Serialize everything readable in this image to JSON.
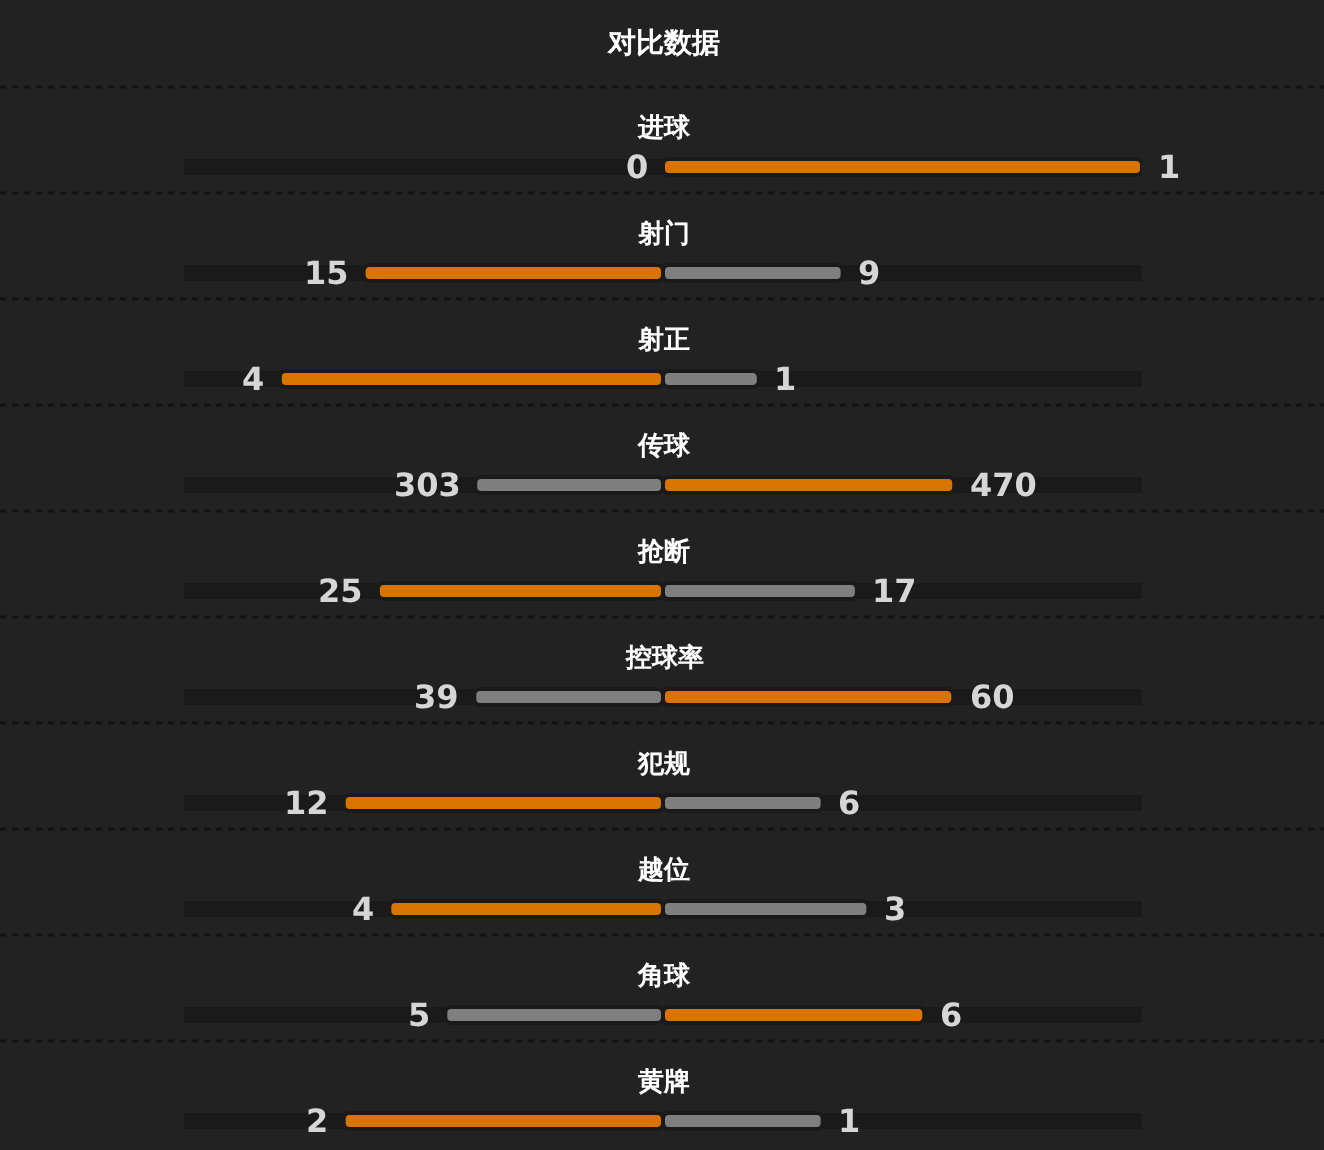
{
  "chart_data": [
    {
      "type": "bar",
      "orientation": "horizontal",
      "stacked": true,
      "title": "对比数据",
      "categories": [
        "进球"
      ],
      "series": [
        {
          "color": "#7f7f7f",
          "values": [
            0
          ]
        },
        {
          "color": "#d97400",
          "values": [
            1
          ]
        }
      ],
      "data_labels": true,
      "tick_labels": "y"
    },
    {
      "type": "bar",
      "orientation": "horizontal",
      "stacked": true,
      "categories": [
        "射门"
      ],
      "series": [
        {
          "color": "#d97400",
          "values": [
            15
          ]
        },
        {
          "color": "#7f7f7f",
          "values": [
            9
          ]
        }
      ],
      "data_labels": true,
      "tick_labels": "y"
    },
    {
      "type": "bar",
      "orientation": "horizontal",
      "stacked": true,
      "categories": [
        "射正"
      ],
      "series": [
        {
          "color": "#d97400",
          "values": [
            4
          ]
        },
        {
          "color": "#7f7f7f",
          "values": [
            1
          ]
        }
      ],
      "data_labels": true,
      "tick_labels": "y"
    },
    {
      "type": "bar",
      "orientation": "horizontal",
      "stacked": true,
      "categories": [
        "传球"
      ],
      "series": [
        {
          "color": "#7f7f7f",
          "values": [
            303
          ]
        },
        {
          "color": "#d97400",
          "values": [
            470
          ]
        }
      ],
      "data_labels": true,
      "tick_labels": "y"
    },
    {
      "type": "bar",
      "orientation": "horizontal",
      "stacked": true,
      "categories": [
        "抢断"
      ],
      "series": [
        {
          "color": "#d97400",
          "values": [
            25
          ]
        },
        {
          "color": "#7f7f7f",
          "values": [
            17
          ]
        }
      ],
      "data_labels": true,
      "tick_labels": "y"
    },
    {
      "type": "bar",
      "orientation": "horizontal",
      "stacked": true,
      "categories": [
        "控球率"
      ],
      "series": [
        {
          "color": "#7f7f7f",
          "values": [
            39
          ]
        },
        {
          "color": "#d97400",
          "values": [
            60
          ]
        }
      ],
      "data_labels": true,
      "tick_labels": "y"
    },
    {
      "type": "bar",
      "orientation": "horizontal",
      "stacked": true,
      "categories": [
        "犯规"
      ],
      "series": [
        {
          "color": "#d97400",
          "values": [
            12
          ]
        },
        {
          "color": "#7f7f7f",
          "values": [
            6
          ]
        }
      ],
      "data_labels": true,
      "tick_labels": "y"
    },
    {
      "type": "bar",
      "orientation": "horizontal",
      "stacked": true,
      "categories": [
        "越位"
      ],
      "series": [
        {
          "color": "#d97400",
          "values": [
            4
          ]
        },
        {
          "color": "#7f7f7f",
          "values": [
            3
          ]
        }
      ],
      "data_labels": true,
      "tick_labels": "y"
    },
    {
      "type": "bar",
      "orientation": "horizontal",
      "stacked": true,
      "categories": [
        "角球"
      ],
      "series": [
        {
          "color": "#7f7f7f",
          "values": [
            5
          ]
        },
        {
          "color": "#d97400",
          "values": [
            6
          ]
        }
      ],
      "data_labels": true,
      "tick_labels": "y"
    },
    {
      "type": "bar",
      "orientation": "horizontal",
      "stacked": true,
      "categories": [
        "黄牌"
      ],
      "series": [
        {
          "color": "#d97400",
          "values": [
            2
          ]
        },
        {
          "color": "#7f7f7f",
          "values": [
            1
          ]
        }
      ],
      "data_labels": true,
      "tick_labels": "y"
    }
  ]
}
